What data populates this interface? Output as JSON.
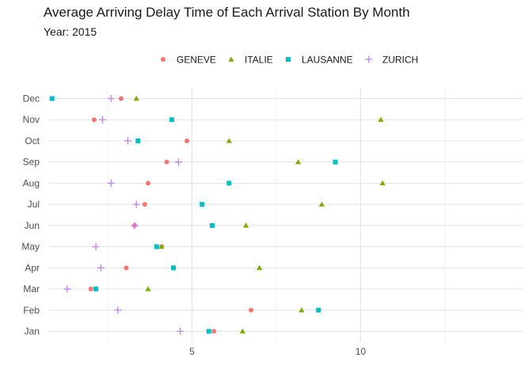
{
  "chart_data": {
    "type": "scatter",
    "title": "Average Arriving Delay Time of Each Arrival Station By Month",
    "subtitle": "Year: 2015",
    "xlabel": "",
    "ylabel": "",
    "xlim": [
      0,
      15
    ],
    "x_ticks": [
      5,
      10
    ],
    "categories": [
      "Jan",
      "Feb",
      "Mar",
      "Apr",
      "May",
      "Jun",
      "Jul",
      "Aug",
      "Sep",
      "Oct",
      "Nov",
      "Dec"
    ],
    "grid": true,
    "legend_position": "top",
    "series": [
      {
        "name": "GENEVE",
        "color": "#F8766D",
        "shape": "circle",
        "values": [
          5.65,
          6.75,
          2.0,
          3.05,
          4.1,
          3.3,
          3.6,
          3.7,
          4.25,
          4.85,
          2.1,
          2.9
        ]
      },
      {
        "name": "ITALIE",
        "color": "#7CAE00",
        "shape": "triangle",
        "values": [
          6.5,
          8.25,
          3.7,
          7.0,
          4.1,
          6.6,
          8.85,
          10.65,
          8.15,
          6.1,
          10.6,
          3.35
        ]
      },
      {
        "name": "LAUSANNE",
        "color": "#00BFC4",
        "shape": "square",
        "values": [
          5.5,
          8.75,
          2.15,
          4.45,
          3.95,
          5.6,
          5.3,
          6.1,
          9.25,
          3.4,
          4.4,
          0.85
        ]
      },
      {
        "name": "ZURICH",
        "color": "#C77CFF",
        "shape": "plus",
        "values": [
          4.65,
          2.8,
          1.3,
          2.3,
          2.15,
          3.3,
          3.35,
          2.6,
          4.6,
          3.1,
          2.35,
          2.6
        ]
      }
    ]
  }
}
